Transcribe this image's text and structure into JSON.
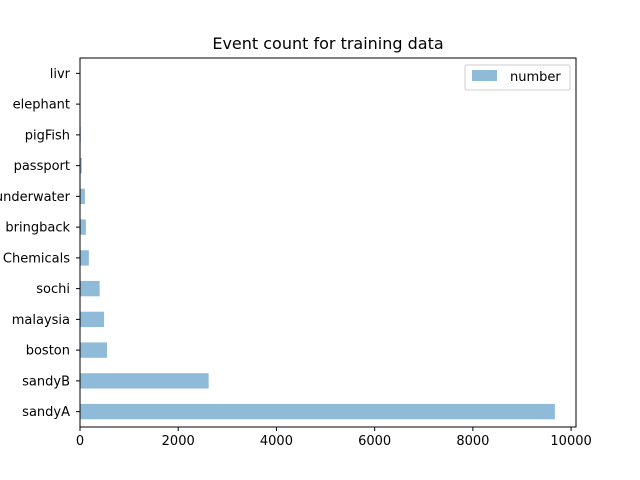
{
  "chart_data": {
    "type": "bar",
    "orientation": "horizontal",
    "title": "Event count for training data",
    "xlabel": "",
    "ylabel": "",
    "categories": [
      "sandyA",
      "sandyB",
      "boston",
      "malaysia",
      "sochi",
      "Chemicals",
      "bringback",
      "underwater",
      "passport",
      "pigFish",
      "elephant",
      "livr"
    ],
    "series": [
      {
        "name": "number",
        "values": [
          9670,
          2620,
          550,
          490,
          400,
          180,
          120,
          100,
          35,
          15,
          10,
          5
        ],
        "color": "#8fbbd9"
      }
    ],
    "xlim": [
      0,
      10100
    ],
    "xticks": [
      0,
      2000,
      4000,
      6000,
      8000,
      10000
    ],
    "grid": false,
    "legend": "top-right"
  }
}
